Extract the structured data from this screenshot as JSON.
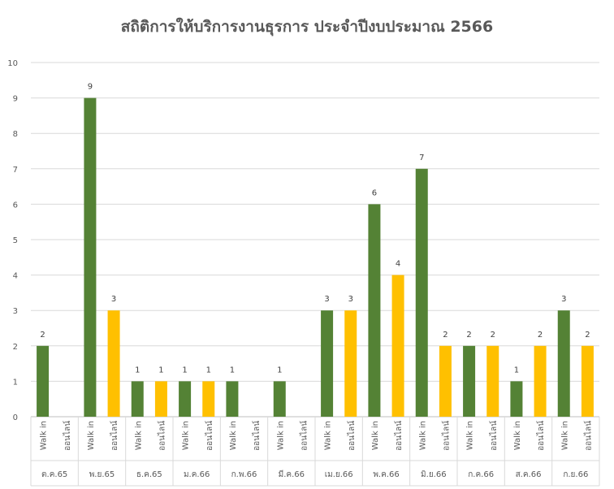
{
  "chart_data": {
    "type": "bar",
    "title": "สถิติการให้บริการงานธุรการ ประจำปีงบประมาณ 2566",
    "xlabel": "",
    "ylabel": "",
    "ylim": [
      0,
      10
    ],
    "yticks": [
      0,
      1,
      2,
      3,
      4,
      5,
      6,
      7,
      8,
      9,
      10
    ],
    "grid": true,
    "legend": "none",
    "bar_types": [
      "Walk in",
      "ออนไลน์"
    ],
    "colors": {
      "Walk in": "#548235",
      "ออนไลน์": "#ffc000"
    },
    "groups": [
      {
        "month": "ต.ค.65",
        "values": [
          2,
          0
        ]
      },
      {
        "month": "พ.ย.65",
        "values": [
          9,
          3
        ]
      },
      {
        "month": "ธ.ค.65",
        "values": [
          1,
          1
        ]
      },
      {
        "month": "ม.ค.66",
        "values": [
          1,
          1
        ]
      },
      {
        "month": "ก.พ.66",
        "values": [
          1,
          0
        ]
      },
      {
        "month": "มี.ค.66",
        "values": [
          1,
          0
        ]
      },
      {
        "month": "เม.ย.66",
        "values": [
          3,
          3
        ]
      },
      {
        "month": "พ.ค.66",
        "values": [
          6,
          4
        ]
      },
      {
        "month": "มิ.ย.66",
        "values": [
          7,
          2
        ]
      },
      {
        "month": "ก.ค.66",
        "values": [
          2,
          2
        ]
      },
      {
        "month": "ส.ค.66",
        "values": [
          1,
          2
        ]
      },
      {
        "month": "ก.ย.66",
        "values": [
          3,
          2
        ]
      }
    ]
  }
}
